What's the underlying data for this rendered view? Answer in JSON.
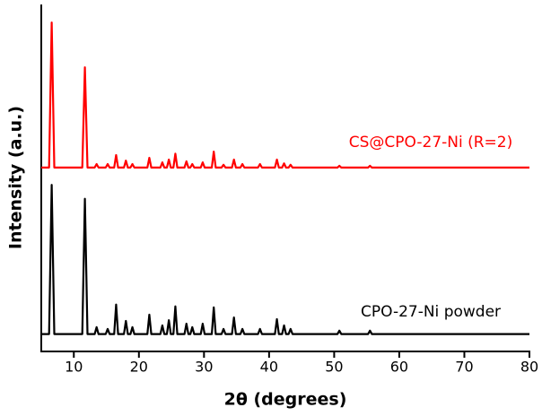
{
  "chart_data": {
    "type": "line",
    "xlabel": "2θ (degrees)",
    "ylabel": "Intensity (a.u.)",
    "xlim": [
      5,
      80
    ],
    "xticks": [
      10,
      20,
      30,
      40,
      50,
      60,
      70,
      80
    ],
    "ylim": [
      0,
      100
    ],
    "x": [
      5,
      6.2,
      6.6,
      7.0,
      11.3,
      11.7,
      12.1,
      13.2,
      13.5,
      13.8,
      14.9,
      15.2,
      15.5,
      16.2,
      16.5,
      16.8,
      17.7,
      18.0,
      18.3,
      18.7,
      19.0,
      19.3,
      21.3,
      21.6,
      21.9,
      23.3,
      23.6,
      23.9,
      24.3,
      24.6,
      24.9,
      25.3,
      25.6,
      25.9,
      27.0,
      27.3,
      27.6,
      27.9,
      28.2,
      28.5,
      29.5,
      29.8,
      30.1,
      31.2,
      31.5,
      31.8,
      32.7,
      33.0,
      33.3,
      34.3,
      34.6,
      34.9,
      35.6,
      35.9,
      36.2,
      38.3,
      38.6,
      38.9,
      40.9,
      41.2,
      41.5,
      42.0,
      42.3,
      42.6,
      43.0,
      43.3,
      43.6,
      50.5,
      50.8,
      51.1,
      55.2,
      55.5,
      55.8,
      80
    ],
    "series": [
      {
        "name": "CS@CPO-27-Ni (R=2)",
        "color": "#ff0000",
        "values": [
          53,
          53,
          94.8,
          53,
          53,
          81.9,
          53,
          53,
          54,
          53,
          53,
          54,
          53,
          53,
          56.6,
          53,
          53,
          55,
          53,
          53,
          54,
          53,
          53,
          55.8,
          53,
          53,
          54.5,
          53,
          53,
          55.3,
          53,
          53,
          57,
          53,
          53,
          54.8,
          53,
          53,
          54,
          53,
          53,
          54.5,
          53,
          53,
          57.6,
          53,
          53,
          53.8,
          53,
          53,
          55.3,
          53,
          53,
          54,
          53,
          53,
          54,
          53,
          53,
          55.3,
          53,
          53,
          54.2,
          53,
          53,
          53.8,
          53,
          53,
          53.5,
          53,
          53,
          53.5,
          53,
          53
        ]
      },
      {
        "name": "CPO-27-Ni powder",
        "color": "#000000",
        "values": [
          5,
          5,
          48,
          5,
          5,
          44,
          5,
          5,
          7,
          5,
          5,
          6.5,
          5,
          5,
          13.5,
          5,
          5,
          8.8,
          5,
          5,
          7,
          5,
          5,
          10.6,
          5,
          5,
          7.5,
          5,
          5,
          9,
          5,
          5,
          13,
          5,
          5,
          8,
          5,
          5,
          7,
          5,
          5,
          8,
          5,
          5,
          12.7,
          5,
          5,
          6.5,
          5,
          5,
          9.8,
          5,
          5,
          6.5,
          5,
          5,
          6.5,
          5,
          5,
          9.3,
          5,
          5,
          7.5,
          5,
          5,
          6.5,
          5,
          5,
          6,
          5,
          5,
          6,
          5,
          5
        ]
      }
    ]
  }
}
